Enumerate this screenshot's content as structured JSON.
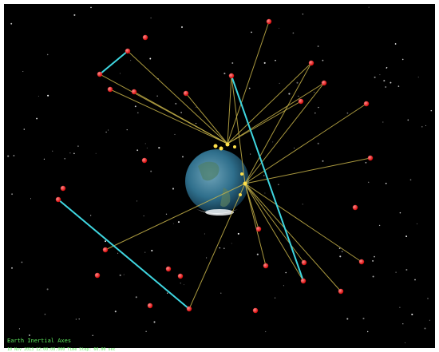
{
  "status": {
    "axes": "Earth Inertial Axes",
    "time": "10 Nov 2013 12:00:00.000    Time Step: 60.00 sec"
  }
}
